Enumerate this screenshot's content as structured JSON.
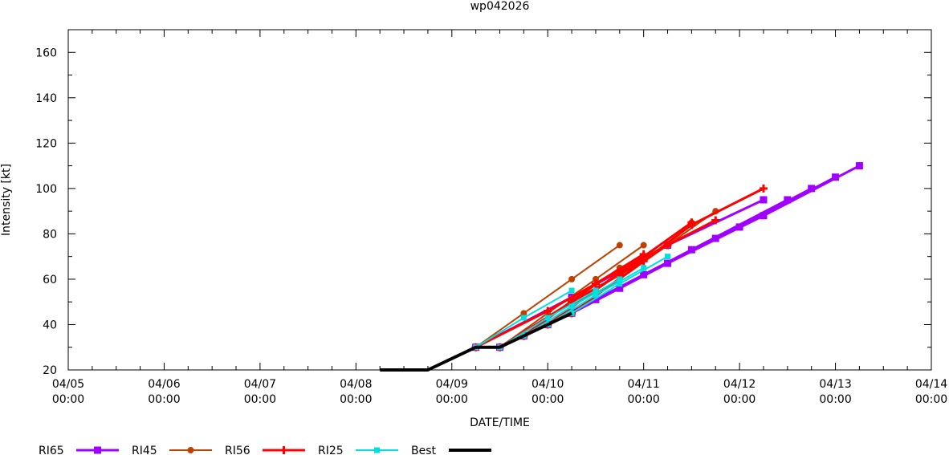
{
  "chart_data": {
    "type": "line",
    "title": "wp042026",
    "xlabel": "DATE/TIME",
    "ylabel": "Intensity [kt]",
    "x_unit": "datetime",
    "xlim": [
      "2026-04-05 00:00",
      "2026-04-14 00:00"
    ],
    "ylim": [
      20,
      170
    ],
    "x_ticks": [
      "04/05 00:00",
      "04/06 00:00",
      "04/07 00:00",
      "04/08 00:00",
      "04/09 00:00",
      "04/10 00:00",
      "04/11 00:00",
      "04/12 00:00",
      "04/13 00:00",
      "04/14 00:00"
    ],
    "x_tick_values": [
      "2026-04-05 00:00",
      "2026-04-06 00:00",
      "2026-04-07 00:00",
      "2026-04-08 00:00",
      "2026-04-09 00:00",
      "2026-04-10 00:00",
      "2026-04-11 00:00",
      "2026-04-12 00:00",
      "2026-04-13 00:00",
      "2026-04-14 00:00"
    ],
    "y_ticks": [
      20,
      40,
      60,
      80,
      100,
      120,
      140,
      160
    ],
    "grid": false,
    "legend_position": "bottom",
    "series": [
      {
        "name": "RI65",
        "color": "#a000ff",
        "marker": "square",
        "width": 3,
        "segments": [
          [
            [
              "2026-04-09 06:00",
              30
            ],
            [
              "2026-04-10 06:00",
              52
            ],
            [
              "2026-04-11 06:00",
              75
            ],
            [
              "2026-04-12 06:00",
              95
            ]
          ],
          [
            [
              "2026-04-09 12:00",
              30
            ],
            [
              "2026-04-10 12:00",
              51
            ],
            [
              "2026-04-11 12:00",
              73
            ],
            [
              "2026-04-12 12:00",
              95
            ]
          ],
          [
            [
              "2026-04-09 18:00",
              35
            ],
            [
              "2026-04-10 18:00",
              56
            ],
            [
              "2026-04-11 18:00",
              78
            ],
            [
              "2026-04-12 18:00",
              100
            ]
          ],
          [
            [
              "2026-04-10 00:00",
              40
            ],
            [
              "2026-04-11 00:00",
              62
            ],
            [
              "2026-04-12 00:00",
              83
            ],
            [
              "2026-04-13 00:00",
              105
            ]
          ],
          [
            [
              "2026-04-10 06:00",
              45
            ],
            [
              "2026-04-11 06:00",
              67
            ],
            [
              "2026-04-12 06:00",
              88
            ],
            [
              "2026-04-13 06:00",
              110
            ]
          ]
        ]
      },
      {
        "name": "RI45",
        "color": "#c04000",
        "marker": "circle",
        "width": 2,
        "segments": [
          [
            [
              "2026-04-09 06:00",
              30
            ],
            [
              "2026-04-09 18:00",
              45
            ],
            [
              "2026-04-10 06:00",
              60
            ],
            [
              "2026-04-10 18:00",
              75
            ]
          ],
          [
            [
              "2026-04-09 12:00",
              30
            ],
            [
              "2026-04-10 00:00",
              45
            ],
            [
              "2026-04-10 12:00",
              60
            ],
            [
              "2026-04-11 00:00",
              75
            ]
          ],
          [
            [
              "2026-04-09 18:00",
              35
            ],
            [
              "2026-04-10 06:00",
              50
            ],
            [
              "2026-04-10 18:00",
              65
            ],
            [
              "2026-04-11 06:00",
              75
            ]
          ],
          [
            [
              "2026-04-10 00:00",
              40
            ],
            [
              "2026-04-10 12:00",
              55
            ],
            [
              "2026-04-11 00:00",
              70
            ],
            [
              "2026-04-11 12:00",
              85
            ]
          ],
          [
            [
              "2026-04-10 06:00",
              45
            ],
            [
              "2026-04-10 18:00",
              60
            ],
            [
              "2026-04-11 06:00",
              75
            ],
            [
              "2026-04-11 18:00",
              90
            ]
          ]
        ]
      },
      {
        "name": "RI56",
        "color": "#ff0000",
        "marker": "plus",
        "width": 3,
        "segments": [
          [
            [
              "2026-04-09 06:00",
              30
            ],
            [
              "2026-04-10 00:00",
              46
            ],
            [
              "2026-04-10 12:00",
              58
            ],
            [
              "2026-04-11 00:00",
              71
            ]
          ],
          [
            [
              "2026-04-09 12:00",
              30
            ],
            [
              "2026-04-10 06:00",
              50
            ],
            [
              "2026-04-10 18:00",
              62
            ],
            [
              "2026-04-11 06:00",
              75
            ]
          ],
          [
            [
              "2026-04-09 18:00",
              35
            ],
            [
              "2026-04-10 12:00",
              58
            ],
            [
              "2026-04-11 00:00",
              70
            ],
            [
              "2026-04-11 12:00",
              85
            ]
          ],
          [
            [
              "2026-04-10 00:00",
              40
            ],
            [
              "2026-04-10 18:00",
              63
            ],
            [
              "2026-04-11 06:00",
              75
            ],
            [
              "2026-04-11 18:00",
              86
            ]
          ],
          [
            [
              "2026-04-10 06:00",
              45
            ],
            [
              "2026-04-11 00:00",
              68
            ],
            [
              "2026-04-11 12:00",
              84
            ],
            [
              "2026-04-12 06:00",
              100
            ]
          ]
        ]
      },
      {
        "name": "RI25",
        "color": "#00e0e0",
        "marker": "square-small",
        "width": 2,
        "segments": [
          [
            [
              "2026-04-09 06:00",
              30
            ],
            [
              "2026-04-09 18:00",
              43
            ],
            [
              "2026-04-10 06:00",
              55
            ]
          ],
          [
            [
              "2026-04-09 12:00",
              30
            ],
            [
              "2026-04-10 00:00",
              43
            ],
            [
              "2026-04-10 12:00",
              55
            ]
          ],
          [
            [
              "2026-04-09 18:00",
              35
            ],
            [
              "2026-04-10 06:00",
              48
            ],
            [
              "2026-04-10 18:00",
              60
            ]
          ],
          [
            [
              "2026-04-10 00:00",
              40
            ],
            [
              "2026-04-10 12:00",
              53
            ],
            [
              "2026-04-11 00:00",
              65
            ]
          ],
          [
            [
              "2026-04-10 06:00",
              45
            ],
            [
              "2026-04-10 18:00",
              58
            ],
            [
              "2026-04-11 06:00",
              70
            ]
          ]
        ]
      },
      {
        "name": "Best",
        "color": "#000000",
        "marker": "none",
        "width": 4,
        "segments": [
          [
            [
              "2026-04-08 06:00",
              20
            ],
            [
              "2026-04-08 12:00",
              20
            ],
            [
              "2026-04-08 18:00",
              20
            ],
            [
              "2026-04-09 06:00",
              30
            ],
            [
              "2026-04-09 12:00",
              30
            ],
            [
              "2026-04-09 18:00",
              35
            ],
            [
              "2026-04-10 00:00",
              40
            ],
            [
              "2026-04-10 06:00",
              45
            ]
          ]
        ]
      }
    ]
  }
}
